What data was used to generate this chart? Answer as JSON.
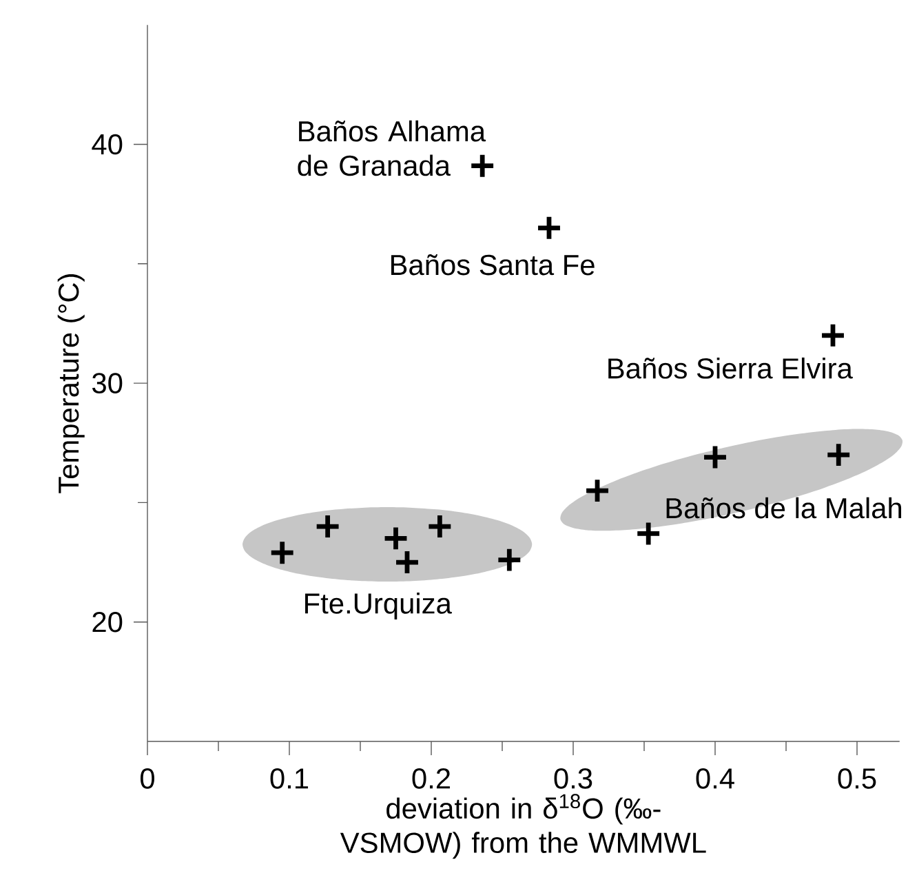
{
  "chart_data": {
    "type": "scatter",
    "xlabel": "deviation in δ$^{18}$O (‰-VSMOW) from the WMMWL",
    "ylabel": "Temperature (°C)",
    "xlim": [
      0,
      0.53
    ],
    "ylim": [
      15,
      45
    ],
    "xticks": [
      0,
      0.1,
      0.2,
      0.3,
      0.4,
      0.5
    ],
    "yticks": [
      20,
      30,
      40
    ],
    "grid": false,
    "marker": "cross",
    "series": [
      {
        "color": "#000000",
        "x": [
          0.236,
          0.283,
          0.483,
          0.095,
          0.127,
          0.175,
          0.183,
          0.206,
          0.255,
          0.317,
          0.353,
          0.4,
          0.487
        ],
        "values": [
          39.1,
          36.5,
          32.0,
          22.9,
          24.0,
          23.5,
          22.5,
          24.0,
          22.6,
          25.5,
          23.7,
          26.9,
          27.0
        ]
      }
    ],
    "annotations": [
      "Baños Alhama de Granada",
      "Baños Santa Fe",
      "Baños Sierra Elvira",
      "Baños de la Malah",
      "Fte.Urquiza"
    ]
  }
}
